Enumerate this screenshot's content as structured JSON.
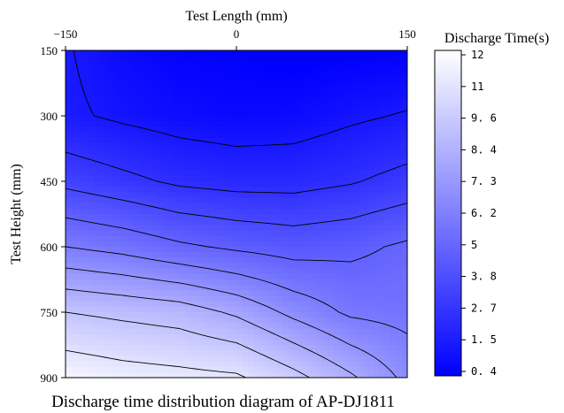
{
  "chart_data": {
    "type": "heatmap",
    "subtype": "filled-contour",
    "title": "",
    "caption": "Discharge time distribution diagram of AP-DJ1811",
    "xlabel": "Test Length (mm)",
    "ylabel": "Test Height (mm)",
    "x_axis_position": "top",
    "xlim": [
      -150,
      150
    ],
    "ylim": [
      150,
      900
    ],
    "y_inverted": true,
    "x_ticks": [
      -150,
      0,
      150
    ],
    "x_tick_labels": [
      "−150",
      "0",
      "150"
    ],
    "y_ticks": [
      150,
      300,
      450,
      600,
      750,
      900
    ],
    "y_tick_labels": [
      "150",
      "300",
      "450",
      "600",
      "750",
      "900"
    ],
    "colorbar": {
      "label": "Discharge Time(s)",
      "range": [
        0.4,
        12.4
      ],
      "ticks": [
        12,
        11,
        9.6,
        8.4,
        7.3,
        6.2,
        5,
        3.8,
        2.7,
        1.5,
        0.4
      ],
      "tick_labels": [
        "12",
        "11",
        "9. 6",
        "8. 4",
        "7. 3",
        "6. 2",
        "5",
        "3. 8",
        "2. 7",
        "1. 5",
        "0. 4"
      ],
      "color_low": "#0000ff",
      "color_high": "#ffffff"
    },
    "contour_levels": [
      1.5,
      2.7,
      3.8,
      5,
      6.2,
      7.3,
      8.4,
      9.6,
      11
    ],
    "x": [
      -150,
      -100,
      -50,
      0,
      50,
      100,
      150
    ],
    "y": [
      150,
      300,
      450,
      600,
      750,
      900
    ],
    "z": [
      [
        1.6,
        0.9,
        0.5,
        0.4,
        0.2,
        0.3,
        0.4
      ],
      [
        1.7,
        1.3,
        1.0,
        0.8,
        0.9,
        1.3,
        1.6
      ],
      [
        3.5,
        3.0,
        2.5,
        2.3,
        2.3,
        2.6,
        3.1
      ],
      [
        6.2,
        5.8,
        5.2,
        4.8,
        4.5,
        4.7,
        5.2
      ],
      [
        9.6,
        9.3,
        9.0,
        8.2,
        7.0,
        6.0,
        5.8
      ],
      [
        12.0,
        11.6,
        11.4,
        11.2,
        10.0,
        8.6,
        7.0
      ]
    ],
    "grid": false,
    "legend": "colorbar-right"
  }
}
